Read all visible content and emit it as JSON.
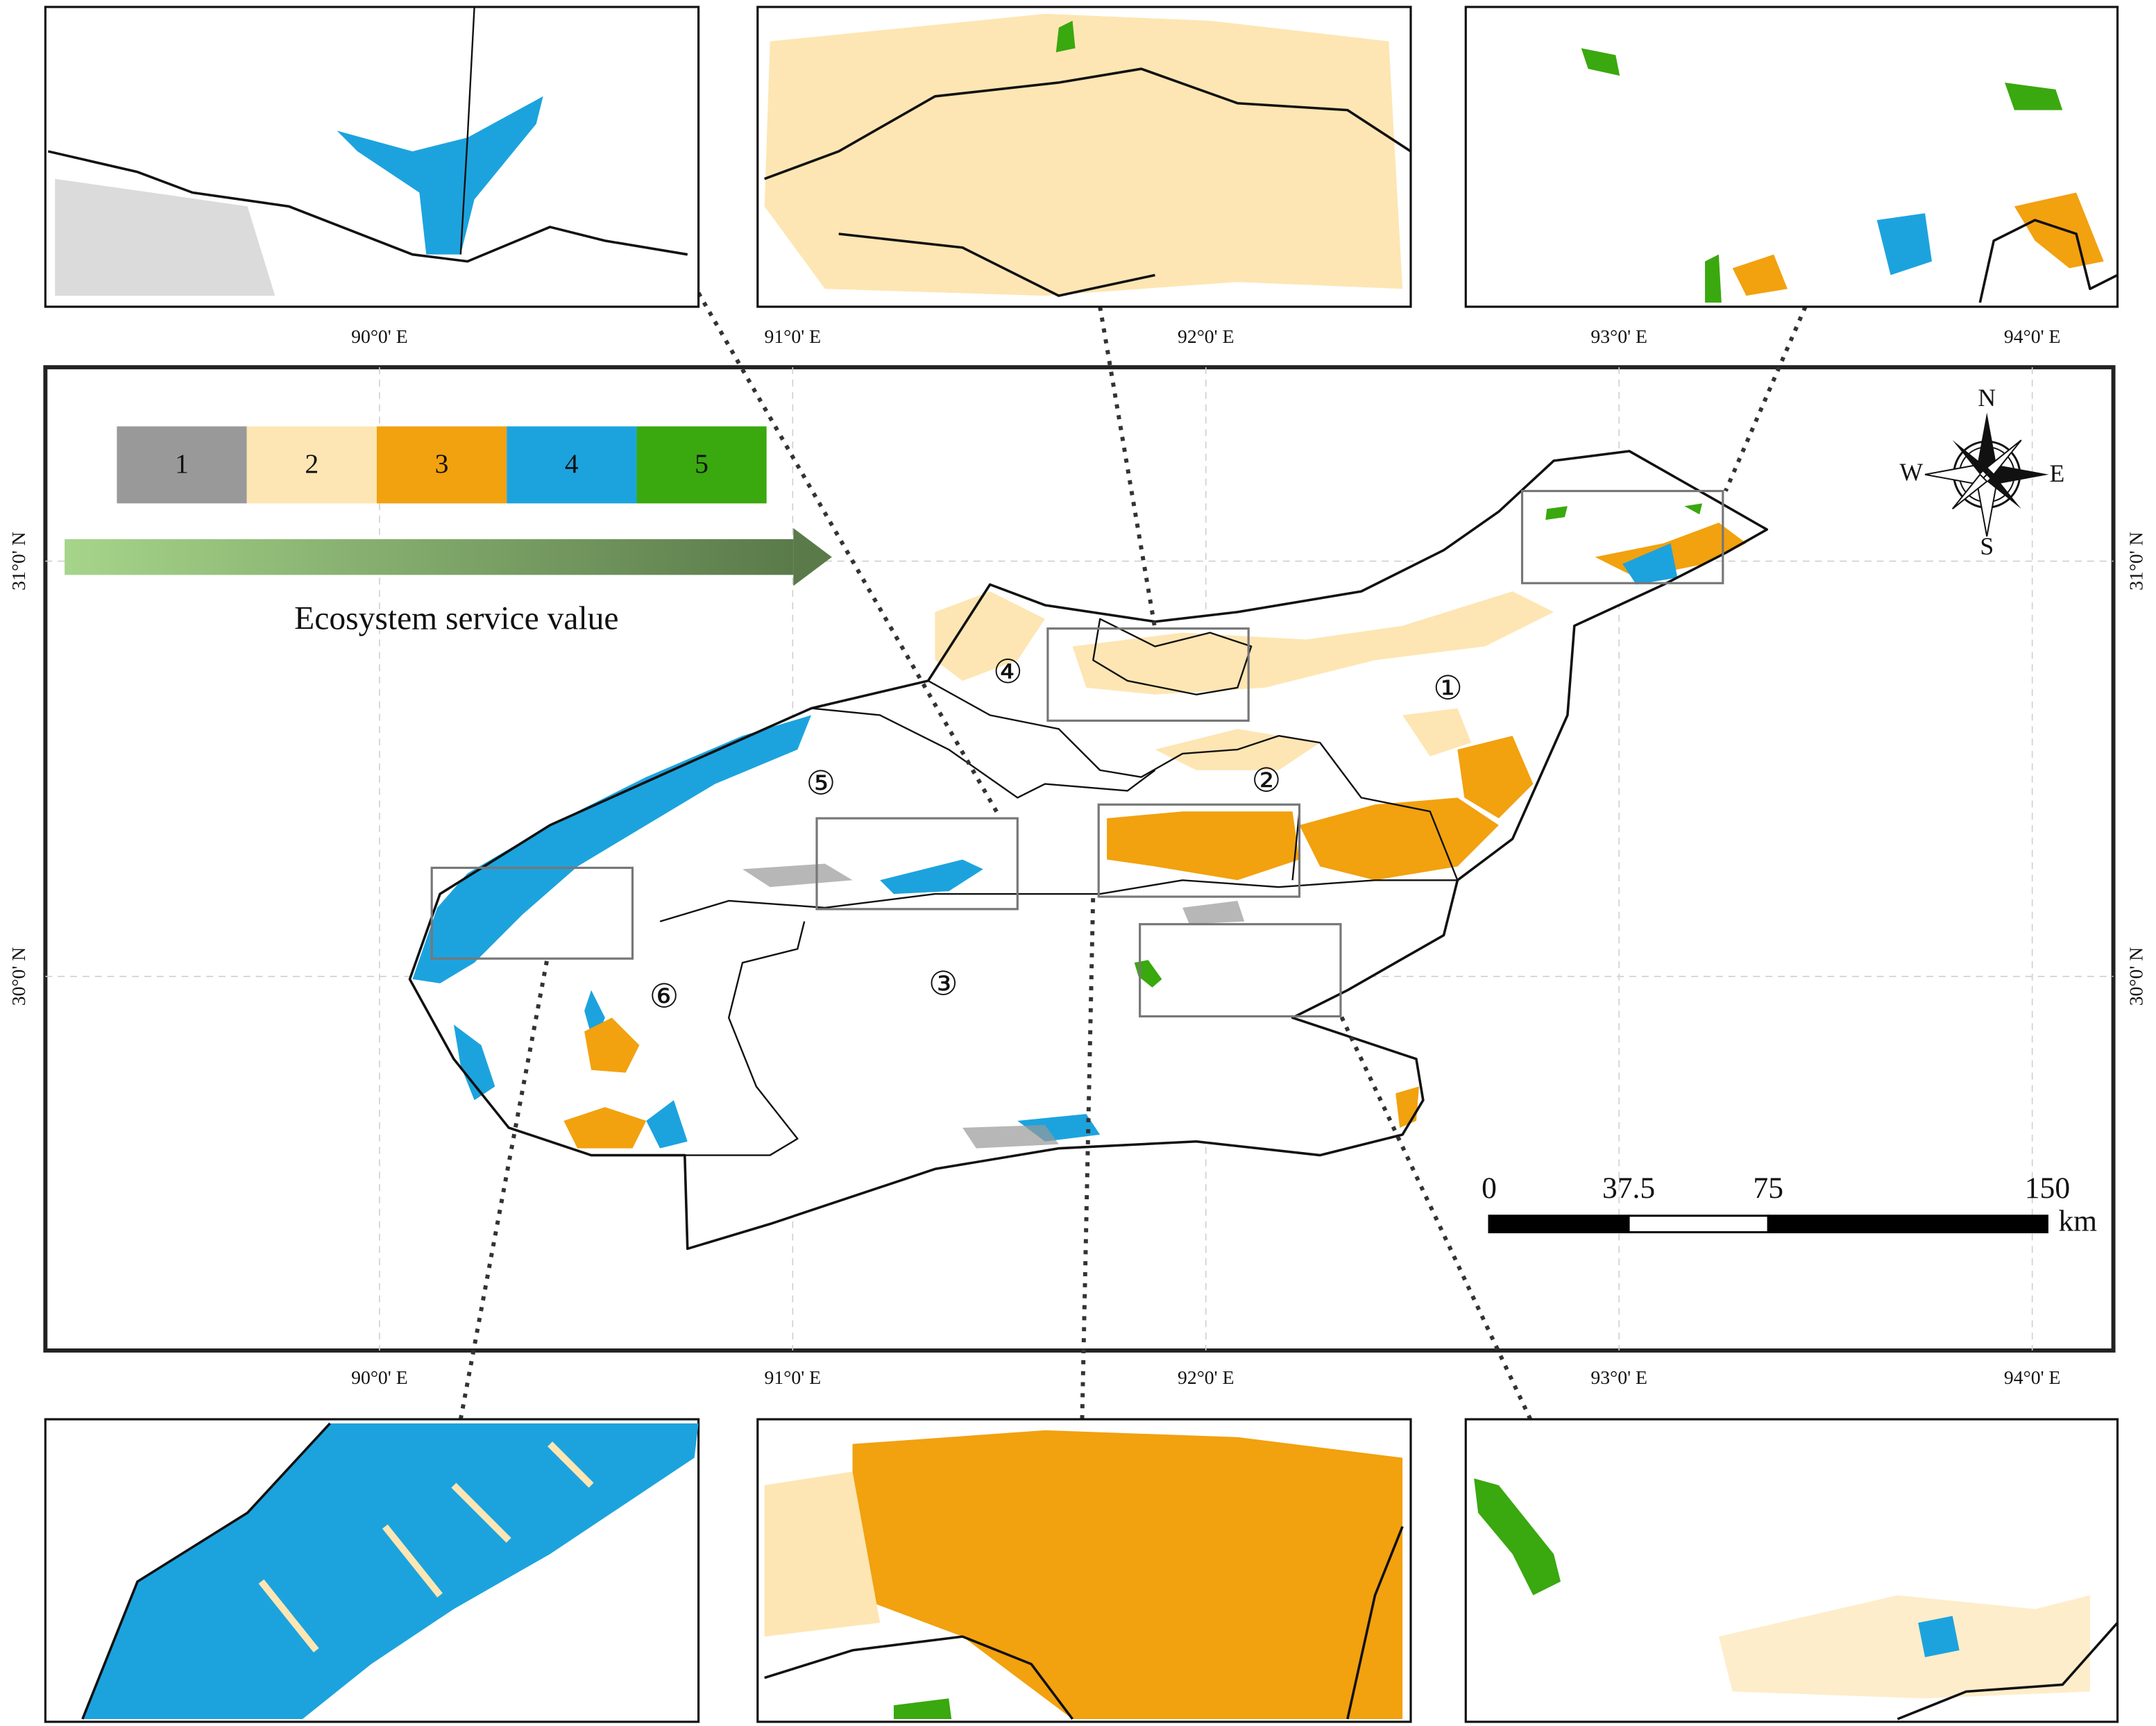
{
  "legend": {
    "classes": [
      {
        "label": "1",
        "color": "#999999"
      },
      {
        "label": "2",
        "color": "#fde6b3"
      },
      {
        "label": "3",
        "color": "#f2a10f"
      },
      {
        "label": "4",
        "color": "#1ca3de"
      },
      {
        "label": "5",
        "color": "#3aa80f"
      }
    ],
    "title": "Ecosystem service value"
  },
  "graticule": {
    "longitudes": [
      {
        "value": 90,
        "label": "90°0' E"
      },
      {
        "value": 91,
        "label": "91°0' E"
      },
      {
        "value": 92,
        "label": "92°0' E"
      },
      {
        "value": 93,
        "label": "93°0' E"
      },
      {
        "value": 94,
        "label": "94°0' E"
      }
    ],
    "latitudes": [
      {
        "value": 31,
        "label": "31°0' N"
      },
      {
        "value": 30,
        "label": "30°0' N"
      }
    ]
  },
  "regions": [
    "①",
    "②",
    "③",
    "④",
    "⑤",
    "⑥"
  ],
  "scale_bar": {
    "ticks": [
      0,
      37.5,
      75,
      150
    ],
    "unit": "km"
  },
  "compass": {
    "north": "N",
    "south": "S",
    "west": "W",
    "east": "E"
  }
}
